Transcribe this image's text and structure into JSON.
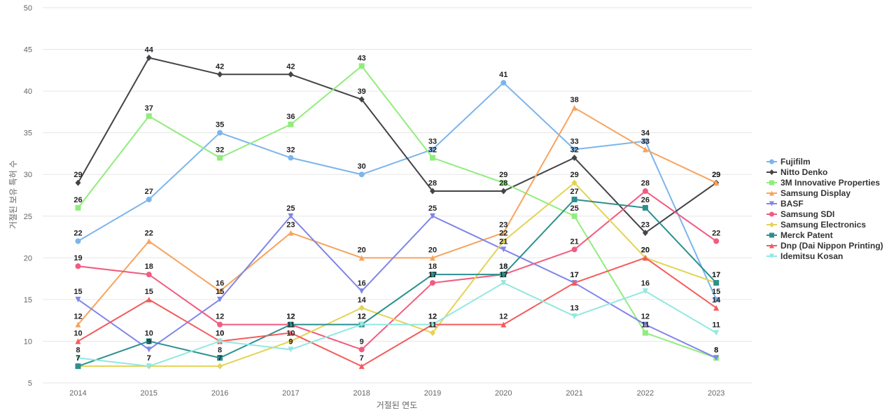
{
  "chart_data": {
    "type": "line",
    "title": "",
    "xlabel": "거절된 연도",
    "ylabel": "거절된 보유 특허 수",
    "ylim": [
      5,
      50
    ],
    "yticks": [
      5,
      10,
      15,
      20,
      25,
      30,
      35,
      40,
      45,
      50
    ],
    "categories": [
      "2014",
      "2015",
      "2016",
      "2017",
      "2018",
      "2019",
      "2020",
      "2021",
      "2022",
      "2023"
    ],
    "grid": true,
    "legend_position": "right",
    "series": [
      {
        "name": "Fujifilm",
        "color": "#7cb5ec",
        "marker": "circle",
        "values": [
          22,
          27,
          35,
          32,
          30,
          33,
          41,
          33,
          34,
          15
        ]
      },
      {
        "name": "Nitto Denko",
        "color": "#434348",
        "marker": "diamond",
        "values": [
          29,
          44,
          42,
          42,
          39,
          28,
          28,
          32,
          23,
          29
        ]
      },
      {
        "name": "3M Innovative Properties",
        "color": "#90ed7d",
        "marker": "square",
        "values": [
          26,
          37,
          32,
          36,
          43,
          32,
          29,
          25,
          11,
          8
        ]
      },
      {
        "name": "Samsung Display",
        "color": "#f7a35c",
        "marker": "triangle",
        "values": [
          12,
          22,
          16,
          23,
          20,
          20,
          23,
          38,
          33,
          29
        ]
      },
      {
        "name": "BASF",
        "color": "#8085e9",
        "marker": "triangle-down",
        "values": [
          15,
          9,
          15,
          25,
          16,
          25,
          21,
          17,
          12,
          8
        ]
      },
      {
        "name": "Samsung SDI",
        "color": "#f15c80",
        "marker": "circle",
        "values": [
          19,
          18,
          12,
          12,
          9,
          17,
          18,
          21,
          28,
          22
        ]
      },
      {
        "name": "Samsung Electronics",
        "color": "#e4d354",
        "marker": "diamond",
        "values": [
          7,
          7,
          7,
          10,
          14,
          11,
          22,
          29,
          20,
          17
        ]
      },
      {
        "name": "Merck Patent",
        "color": "#2b908f",
        "marker": "square",
        "values": [
          7,
          10,
          8,
          12,
          12,
          18,
          18,
          27,
          26,
          17
        ]
      },
      {
        "name": "Dnp (Dai Nippon Printing)",
        "color": "#f45b5b",
        "marker": "triangle",
        "values": [
          10,
          15,
          10,
          11,
          7,
          12,
          12,
          17,
          20,
          14
        ]
      },
      {
        "name": "Idemitsu Kosan",
        "color": "#91e8e1",
        "marker": "triangle-down",
        "values": [
          8,
          7,
          10,
          9,
          12,
          12,
          17,
          13,
          16,
          11
        ]
      }
    ]
  }
}
